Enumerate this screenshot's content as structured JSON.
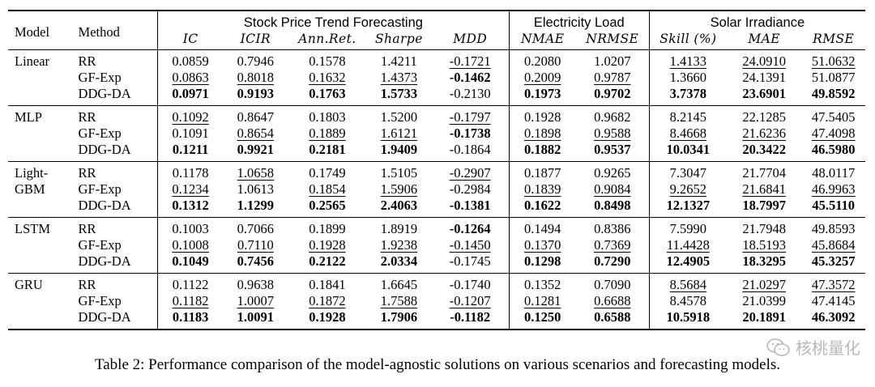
{
  "table": {
    "header": {
      "model": "Model",
      "method": "Method",
      "groups": [
        "Stock Price Trend Forecasting",
        "Electricity Load",
        "Solar Irradiance"
      ],
      "metrics": [
        "IC",
        "ICIR",
        "Ann.Ret.",
        "Sharpe",
        "MDD",
        "NMAE",
        "NRMSE",
        "Skill (%)",
        "MAE",
        "RMSE"
      ]
    },
    "blocks": [
      {
        "model": "Linear",
        "rows": [
          {
            "method": "RR",
            "values": [
              "0.0859",
              "0.7946",
              "0.1578",
              "1.4211",
              "-0.1721",
              "0.2080",
              "1.0207",
              "1.4133",
              "24.0910",
              "51.0632"
            ],
            "bold": [
              0,
              0,
              0,
              0,
              0,
              0,
              0,
              0,
              0,
              0
            ],
            "underline": [
              0,
              0,
              0,
              0,
              1,
              0,
              0,
              1,
              1,
              1
            ]
          },
          {
            "method": "GF-Exp",
            "values": [
              "0.0863",
              "0.8018",
              "0.1632",
              "1.4373",
              "-0.1462",
              "0.2009",
              "0.9787",
              "1.3660",
              "24.1391",
              "51.0877"
            ],
            "bold": [
              0,
              0,
              0,
              0,
              1,
              0,
              0,
              0,
              0,
              0
            ],
            "underline": [
              1,
              1,
              1,
              1,
              0,
              1,
              1,
              0,
              0,
              0
            ]
          },
          {
            "method": "DDG-DA",
            "values": [
              "0.0971",
              "0.9193",
              "0.1763",
              "1.5733",
              "-0.2130",
              "0.1973",
              "0.9702",
              "3.7378",
              "23.6901",
              "49.8592"
            ],
            "bold": [
              1,
              1,
              1,
              1,
              0,
              1,
              1,
              1,
              1,
              1
            ],
            "underline": [
              0,
              0,
              0,
              0,
              0,
              0,
              0,
              0,
              0,
              0
            ]
          }
        ]
      },
      {
        "model": "MLP",
        "rows": [
          {
            "method": "RR",
            "values": [
              "0.1092",
              "0.8647",
              "0.1803",
              "1.5200",
              "-0.1797",
              "0.1928",
              "0.9682",
              "8.2145",
              "22.1285",
              "47.5405"
            ],
            "bold": [
              0,
              0,
              0,
              0,
              0,
              0,
              0,
              0,
              0,
              0
            ],
            "underline": [
              1,
              0,
              0,
              0,
              1,
              0,
              0,
              0,
              0,
              0
            ]
          },
          {
            "method": "GF-Exp",
            "values": [
              "0.1091",
              "0.8654",
              "0.1889",
              "1.6121",
              "-0.1738",
              "0.1898",
              "0.9588",
              "8.4668",
              "21.6236",
              "47.4098"
            ],
            "bold": [
              0,
              0,
              0,
              0,
              1,
              0,
              0,
              0,
              0,
              0
            ],
            "underline": [
              0,
              1,
              1,
              1,
              0,
              1,
              1,
              1,
              1,
              1
            ]
          },
          {
            "method": "DDG-DA",
            "values": [
              "0.1211",
              "0.9921",
              "0.2181",
              "1.9409",
              "-0.1864",
              "0.1882",
              "0.9537",
              "10.0341",
              "20.3422",
              "46.5980"
            ],
            "bold": [
              1,
              1,
              1,
              1,
              0,
              1,
              1,
              1,
              1,
              1
            ],
            "underline": [
              0,
              0,
              0,
              0,
              0,
              0,
              0,
              0,
              0,
              0
            ]
          }
        ]
      },
      {
        "model": "Light-GBM",
        "model_lines": [
          "Light-",
          "GBM"
        ],
        "rows": [
          {
            "method": "RR",
            "values": [
              "0.1178",
              "1.0658",
              "0.1749",
              "1.5105",
              "-0.2907",
              "0.1877",
              "0.9265",
              "7.3047",
              "21.7704",
              "48.0117"
            ],
            "bold": [
              0,
              0,
              0,
              0,
              0,
              0,
              0,
              0,
              0,
              0
            ],
            "underline": [
              0,
              1,
              0,
              0,
              1,
              0,
              0,
              0,
              0,
              0
            ]
          },
          {
            "method": "GF-Exp",
            "values": [
              "0.1234",
              "1.0613",
              "0.1854",
              "1.5906",
              "-0.2984",
              "0.1839",
              "0.9084",
              "9.2652",
              "21.6841",
              "46.9963"
            ],
            "bold": [
              0,
              0,
              0,
              0,
              0,
              0,
              0,
              0,
              0,
              0
            ],
            "underline": [
              1,
              0,
              1,
              1,
              0,
              1,
              1,
              1,
              1,
              1
            ]
          },
          {
            "method": "DDG-DA",
            "values": [
              "0.1312",
              "1.1299",
              "0.2565",
              "2.4063",
              "-0.1381",
              "0.1622",
              "0.8498",
              "12.1327",
              "18.7997",
              "45.5110"
            ],
            "bold": [
              1,
              1,
              1,
              1,
              1,
              1,
              1,
              1,
              1,
              1
            ],
            "underline": [
              0,
              0,
              0,
              0,
              0,
              0,
              0,
              0,
              0,
              0
            ]
          }
        ]
      },
      {
        "model": "LSTM",
        "rows": [
          {
            "method": "RR",
            "values": [
              "0.1003",
              "0.7066",
              "0.1899",
              "1.8919",
              "-0.1264",
              "0.1494",
              "0.8386",
              "7.5990",
              "21.7948",
              "49.8593"
            ],
            "bold": [
              0,
              0,
              0,
              0,
              1,
              0,
              0,
              0,
              0,
              0
            ],
            "underline": [
              0,
              0,
              0,
              0,
              0,
              0,
              0,
              0,
              0,
              0
            ]
          },
          {
            "method": "GF-Exp",
            "values": [
              "0.1008",
              "0.7110",
              "0.1928",
              "1.9238",
              "-0.1450",
              "0.1370",
              "0.7369",
              "11.4428",
              "18.5193",
              "45.8684"
            ],
            "bold": [
              0,
              0,
              0,
              0,
              0,
              0,
              0,
              0,
              0,
              0
            ],
            "underline": [
              1,
              1,
              1,
              1,
              1,
              1,
              1,
              1,
              1,
              1
            ]
          },
          {
            "method": "DDG-DA",
            "values": [
              "0.1049",
              "0.7456",
              "0.2122",
              "2.0334",
              "-0.1745",
              "0.1298",
              "0.7290",
              "12.4905",
              "18.3295",
              "45.3257"
            ],
            "bold": [
              1,
              1,
              1,
              1,
              0,
              1,
              1,
              1,
              1,
              1
            ],
            "underline": [
              0,
              0,
              0,
              0,
              0,
              0,
              0,
              0,
              0,
              0
            ]
          }
        ]
      },
      {
        "model": "GRU",
        "rows": [
          {
            "method": "RR",
            "values": [
              "0.1122",
              "0.9638",
              "0.1841",
              "1.6645",
              "-0.1740",
              "0.1352",
              "0.7090",
              "8.5684",
              "21.0297",
              "47.3572"
            ],
            "bold": [
              0,
              0,
              0,
              0,
              0,
              0,
              0,
              0,
              0,
              0
            ],
            "underline": [
              0,
              0,
              0,
              0,
              0,
              0,
              0,
              1,
              1,
              1
            ]
          },
          {
            "method": "GF-Exp",
            "values": [
              "0.1182",
              "1.0007",
              "0.1872",
              "1.7588",
              "-0.1207",
              "0.1281",
              "0.6688",
              "8.4578",
              "21.0399",
              "47.4145"
            ],
            "bold": [
              0,
              0,
              0,
              0,
              0,
              0,
              0,
              0,
              0,
              0
            ],
            "underline": [
              1,
              1,
              1,
              1,
              1,
              1,
              1,
              0,
              0,
              0
            ]
          },
          {
            "method": "DDG-DA",
            "values": [
              "0.1183",
              "1.0091",
              "0.1928",
              "1.7906",
              "-0.1182",
              "0.1250",
              "0.6588",
              "10.5918",
              "20.1891",
              "46.3092"
            ],
            "bold": [
              1,
              1,
              1,
              1,
              1,
              1,
              1,
              1,
              1,
              1
            ],
            "underline": [
              0,
              0,
              0,
              0,
              0,
              0,
              0,
              0,
              0,
              0
            ]
          }
        ]
      }
    ]
  },
  "caption": "Table 2: Performance comparison of the model-agnostic solutions on various scenarios and forecasting models.",
  "watermark": {
    "icon": "wechat-icon",
    "text": "核桃量化",
    "color": "#b8b8b8"
  }
}
